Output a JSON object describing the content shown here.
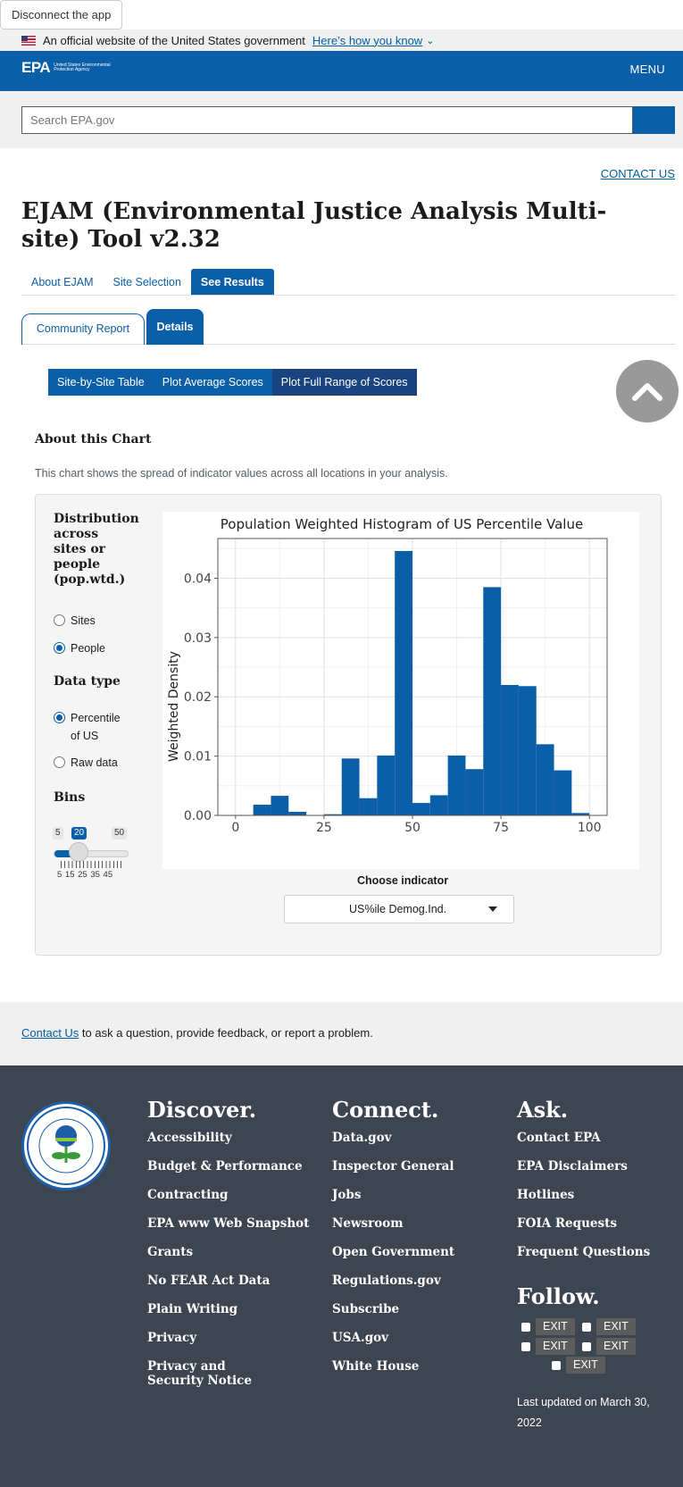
{
  "disconnect_label": "Disconnect the app",
  "gov_banner": {
    "text": "An official website of the United States government",
    "link": "Here’s how you know"
  },
  "header": {
    "logo": "EPA",
    "logo_text": "United States Environmental Protection Agency",
    "menu": "MENU"
  },
  "search": {
    "placeholder": "Search EPA.gov"
  },
  "contact_us_top": "CONTACT US",
  "page_title": "EJAM (Environmental Justice Analysis Multi-site) Tool v2.32",
  "main_tabs": [
    "About EJAM",
    "Site Selection",
    "See Results"
  ],
  "sub_tabs": [
    "Community Report",
    "Details"
  ],
  "detail_tabs": [
    "Site-by-Site Table",
    "Plot Average Scores",
    "Plot Full Range of Scores"
  ],
  "about": {
    "heading": "About this Chart",
    "text": "This chart shows the spread of indicator values across all locations in your analysis."
  },
  "controls": {
    "distribution_heading": "Distribution across sites or people (pop.wtd.)",
    "distribution_options": [
      "Sites",
      "People"
    ],
    "distribution_selected": "People",
    "datatype_heading": "Data type",
    "datatype_options": [
      "Percentile of US",
      "Raw data"
    ],
    "datatype_selected": "Percentile of US",
    "bins_heading": "Bins",
    "bins_min": "5",
    "bins_value": "20",
    "bins_max": "50",
    "bins_ticks": "5 15 25 35 45",
    "bins_fraction": 0.333,
    "choose_label": "Choose indicator",
    "indicator_selected": "US%ile Demog.Ind."
  },
  "chart_data": {
    "type": "bar",
    "title": "Population Weighted Histogram of US Percentile Value",
    "xlabel": "",
    "ylabel": "Weighted Density",
    "bin_width": 5,
    "bin_starts": [
      0,
      5,
      10,
      15,
      20,
      25,
      30,
      35,
      40,
      45,
      50,
      55,
      60,
      65,
      70,
      75,
      80,
      85,
      90,
      95
    ],
    "values": [
      0.0,
      0.0018,
      0.0033,
      0.0006,
      0.0,
      0.0002,
      0.0096,
      0.0029,
      0.0101,
      0.0446,
      0.0021,
      0.0034,
      0.0101,
      0.0078,
      0.0385,
      0.022,
      0.0218,
      0.012,
      0.0076,
      0.0004
    ],
    "xlim": [
      -5,
      105
    ],
    "ylim": [
      0,
      0.0467
    ],
    "xticks": [
      "0",
      "25",
      "50",
      "75",
      "100"
    ],
    "xtick_values": [
      0,
      25,
      50,
      75,
      100
    ],
    "yticks": [
      "0.00",
      "0.01",
      "0.02",
      "0.03",
      "0.04"
    ],
    "ytick_values": [
      0,
      0.01,
      0.02,
      0.03,
      0.04
    ],
    "bar_color": "#0b5ea8",
    "grid": true
  },
  "contact_band": {
    "link": "Contact Us",
    "text": " to ask a question, provide feedback, or report a problem."
  },
  "footer": {
    "discover": {
      "heading": "Discover.",
      "items": [
        "Accessibility",
        "Budget & Performance",
        "Contracting",
        "EPA www Web Snapshot",
        "Grants",
        "No FEAR Act Data",
        "Plain Writing",
        "Privacy",
        "Privacy and Security Notice"
      ]
    },
    "connect": {
      "heading": "Connect.",
      "items": [
        "Data.gov",
        "Inspector General",
        "Jobs",
        "Newsroom",
        "Open Government",
        "Regulations.gov",
        "Subscribe",
        "USA.gov",
        "White House"
      ]
    },
    "ask": {
      "heading": "Ask.",
      "items": [
        "Contact EPA",
        "EPA Disclaimers",
        "Hotlines",
        "FOIA Requests",
        "Frequent Questions"
      ]
    },
    "follow_heading": "Follow.",
    "exit_label": "EXIT",
    "updated": "Last updated on March 30, 2022"
  },
  "colors": {
    "epa_blue": "#0b5ea8",
    "footer_bg": "#3d4551"
  }
}
